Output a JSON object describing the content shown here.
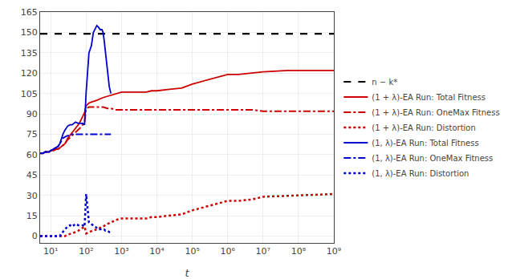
{
  "chart_data": {
    "type": "line",
    "xlabel": "t",
    "log": "x",
    "xlim": [
      5,
      1000000000
    ],
    "xticks": [
      {
        "value": 10,
        "label": "10¹"
      },
      {
        "value": 100,
        "label": "10²"
      },
      {
        "value": 1000,
        "label": "10³"
      },
      {
        "value": 10000,
        "label": "10⁴"
      },
      {
        "value": 100000,
        "label": "10⁵"
      },
      {
        "value": 1000000,
        "label": "10⁶"
      },
      {
        "value": 10000000,
        "label": "10⁷"
      },
      {
        "value": 100000000,
        "label": "10⁸"
      },
      {
        "value": 1000000000,
        "label": "10⁹"
      }
    ],
    "ylim": [
      -5,
      165
    ],
    "yticks": [
      0,
      15,
      30,
      45,
      60,
      75,
      90,
      105,
      120,
      135,
      150,
      165
    ],
    "grid": true,
    "legend": "right",
    "series": [
      {
        "name": "n − k*",
        "type": "hline",
        "color": "#000000",
        "line_style": "dashed",
        "values": [
          149
        ]
      },
      {
        "name": "(1 + λ)-EA Run: Total Fitness",
        "color": "#cc0000",
        "line_style": "solid",
        "x": [
          5,
          6,
          7,
          8,
          9,
          10,
          12,
          14,
          16,
          18,
          20,
          22,
          25,
          30,
          40,
          50,
          60,
          70,
          80,
          90,
          100,
          120,
          150,
          200,
          300,
          400,
          500,
          700,
          1000,
          2000,
          3000,
          5000,
          7000,
          10000,
          20000,
          50000,
          100000,
          200000,
          500000,
          1000000,
          2000000,
          5000000,
          10000000,
          50000000,
          100000000,
          1000000000
        ],
        "values": [
          61,
          61,
          62,
          62,
          62,
          63,
          63,
          64,
          64,
          65,
          66,
          67,
          68,
          72,
          76,
          79,
          82,
          85,
          88,
          91,
          96,
          98,
          99,
          100,
          102,
          103,
          104,
          105,
          106,
          106,
          106,
          106,
          107,
          107,
          108,
          109,
          112,
          114,
          117,
          119,
          119,
          120,
          121,
          122,
          122,
          122
        ]
      },
      {
        "name": "(1 + λ)-EA Run: OneMax Fitness",
        "color": "#cc0000",
        "line_style": "dashdot",
        "x": [
          5,
          6,
          7,
          8,
          9,
          10,
          12,
          14,
          16,
          18,
          20,
          22,
          25,
          30,
          40,
          50,
          60,
          70,
          80,
          90,
          100,
          120,
          150,
          200,
          300,
          400,
          500,
          700,
          1000,
          2000,
          3000,
          5000,
          7000,
          10000,
          20000,
          50000,
          100000,
          200000,
          500000,
          1000000,
          2000000,
          5000000,
          10000000,
          50000000,
          100000000,
          1000000000
        ],
        "values": [
          61,
          61,
          62,
          62,
          62,
          63,
          63,
          64,
          64,
          65,
          66,
          67,
          68,
          71,
          74,
          76,
          78,
          80,
          82,
          84,
          94,
          95,
          95,
          95,
          95,
          94,
          94,
          93,
          93,
          93,
          93,
          93,
          93,
          93,
          93,
          93,
          93,
          93,
          93,
          93,
          93,
          93,
          92,
          92,
          92,
          92
        ]
      },
      {
        "name": "(1 + λ)-EA Run: Distortion",
        "color": "#cc0000",
        "line_style": "dotted",
        "x": [
          5,
          6,
          7,
          8,
          9,
          10,
          12,
          14,
          16,
          18,
          20,
          22,
          25,
          30,
          40,
          50,
          60,
          70,
          80,
          90,
          100,
          120,
          150,
          200,
          300,
          400,
          500,
          700,
          1000,
          2000,
          3000,
          5000,
          7000,
          10000,
          20000,
          50000,
          100000,
          200000,
          500000,
          1000000,
          2000000,
          5000000,
          10000000,
          50000000,
          100000000,
          1000000000
        ],
        "values": [
          0,
          0,
          0,
          0,
          0,
          0,
          0,
          0,
          0,
          0,
          0,
          0,
          0,
          1,
          2,
          3,
          4,
          5,
          6,
          7,
          2,
          3,
          4,
          5,
          7,
          9,
          10,
          12,
          13,
          13,
          13,
          13,
          14,
          14,
          15,
          16,
          19,
          21,
          24,
          26,
          26,
          27,
          29,
          30,
          30,
          31
        ]
      },
      {
        "name": "(1, λ)-EA Run: Total Fitness",
        "color": "#0000cc",
        "line_style": "solid",
        "x": [
          5,
          6,
          7,
          8,
          9,
          10,
          12,
          14,
          16,
          18,
          20,
          22,
          25,
          30,
          35,
          40,
          50,
          60,
          70,
          80,
          90,
          100,
          120,
          140,
          160,
          180,
          200,
          220,
          250,
          280,
          300,
          320,
          350,
          380,
          400,
          450,
          500
        ],
        "values": [
          61,
          61,
          62,
          62,
          62,
          63,
          64,
          65,
          66,
          68,
          72,
          75,
          78,
          81,
          82,
          82,
          84,
          83,
          83,
          83,
          82,
          106,
          135,
          140,
          150,
          153,
          155,
          154,
          152,
          152,
          150,
          145,
          136,
          128,
          120,
          110,
          105
        ]
      },
      {
        "name": "(1, λ)-EA Run: OneMax Fitness",
        "color": "#0000cc",
        "line_style": "dashdot",
        "x": [
          5,
          6,
          7,
          8,
          9,
          10,
          12,
          14,
          16,
          18,
          20,
          22,
          25,
          30,
          35,
          40,
          50,
          60,
          70,
          80,
          90,
          100,
          120,
          140,
          160,
          180,
          200,
          220,
          250,
          280,
          300,
          320,
          350,
          380,
          400,
          450,
          500
        ],
        "values": [
          61,
          61,
          62,
          62,
          62,
          63,
          64,
          65,
          66,
          68,
          70,
          72,
          73,
          74,
          74,
          75,
          75,
          75,
          75,
          75,
          75,
          75,
          75,
          75,
          75,
          75,
          75,
          75,
          75,
          75,
          75,
          75,
          75,
          75,
          75,
          75,
          75
        ]
      },
      {
        "name": "(1, λ)-EA Run: Distortion",
        "color": "#0000cc",
        "line_style": "dotted",
        "x": [
          5,
          6,
          7,
          8,
          9,
          10,
          12,
          14,
          16,
          18,
          20,
          22,
          25,
          30,
          35,
          40,
          50,
          60,
          70,
          80,
          90,
          100,
          120,
          140,
          160,
          180,
          200,
          220,
          250,
          280,
          300,
          320,
          350,
          380,
          400,
          450,
          500
        ],
        "values": [
          0,
          0,
          0,
          0,
          0,
          0,
          0,
          0,
          0,
          0,
          2,
          3,
          5,
          7,
          8,
          7,
          9,
          8,
          8,
          8,
          7,
          31,
          10,
          9,
          8,
          7,
          6,
          5,
          5,
          5,
          5,
          5,
          4,
          4,
          4,
          3,
          3
        ]
      }
    ]
  }
}
